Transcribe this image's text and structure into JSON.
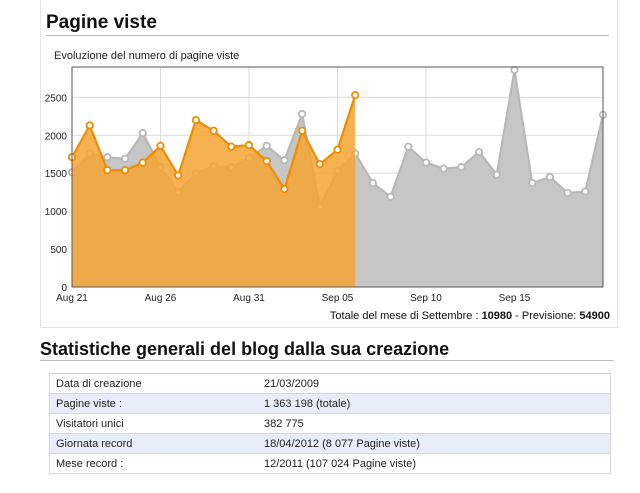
{
  "header": {
    "title": "Pagine viste"
  },
  "chart": {
    "subtitle": "Evoluzione del numero di pagine viste",
    "colors": {
      "current": "#f08c00",
      "current_fill": "#f5a431",
      "previous": "#b8b8b8",
      "previous_fill": "#c6c6c6",
      "grid": "#dcdcdc"
    }
  },
  "chart_data": {
    "type": "area",
    "title": "Evoluzione del numero di pagine viste",
    "xlabel": "",
    "ylabel": "",
    "ylim": [
      0,
      2900
    ],
    "yticks": [
      0,
      500,
      1000,
      1500,
      2000,
      2500
    ],
    "x_start": "Aug 21",
    "x_ticks": [
      "Aug 21",
      "Aug 26",
      "Aug 31",
      "Sep 05",
      "Sep 10",
      "Sep 15"
    ],
    "grid": true,
    "series": [
      {
        "values": [
          1510,
          1760,
          1710,
          1690,
          2030,
          1580,
          1250,
          1500,
          1590,
          1580,
          1700,
          1860,
          1670,
          2280,
          1060,
          1530,
          1760,
          1370,
          1190,
          1850,
          1640,
          1560,
          1580,
          1780,
          1480,
          2860,
          1370,
          1450,
          1240,
          1260,
          2270
        ]
      },
      {
        "values": [
          1710,
          2130,
          1540,
          1540,
          1640,
          1860,
          1470,
          2200,
          2060,
          1850,
          1870,
          1660,
          1290,
          2060,
          1620,
          1810,
          2530
        ]
      }
    ]
  },
  "total": {
    "label": "Totale del mese di Settembre : ",
    "value": "10980",
    "separator": " - Previsione: ",
    "forecast": "54900"
  },
  "stats": {
    "title": "Statistiche generali del blog dalla sua creazione",
    "rows": [
      {
        "key": "Data di creazione",
        "value": "21/03/2009"
      },
      {
        "key": "Pagine viste :",
        "value": "1 363 198 (totale)"
      },
      {
        "key": "Visitatori unici",
        "value": "382 775"
      },
      {
        "key": "Giornata record",
        "value": "18/04/2012 (8 077 Pagine viste)"
      },
      {
        "key": "Mese record :",
        "value": "12/2011 (107 024 Pagine viste)"
      }
    ]
  }
}
